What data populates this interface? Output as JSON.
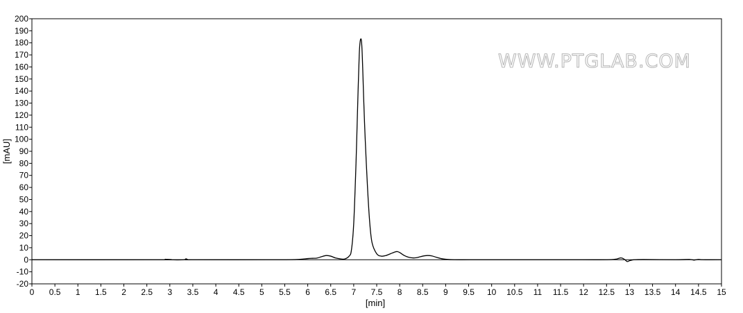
{
  "chart_data": {
    "type": "line",
    "title": "",
    "xlabel": "[min]",
    "ylabel": "[mAU]",
    "xlim": [
      0,
      15
    ],
    "ylim": [
      -20,
      200
    ],
    "x_ticks": [
      "0",
      "0.5",
      "1",
      "1.5",
      "2",
      "2.5",
      "3",
      "3.5",
      "4",
      "4.5",
      "5",
      "5.5",
      "6",
      "6.5",
      "7",
      "7.5",
      "8",
      "8.5",
      "9",
      "9.5",
      "10",
      "10.5",
      "11",
      "11.5",
      "12",
      "12.5",
      "13",
      "13.5",
      "14",
      "14.5",
      "15"
    ],
    "y_ticks": [
      "-20",
      "-10",
      "0",
      "10",
      "20",
      "30",
      "40",
      "50",
      "60",
      "70",
      "80",
      "90",
      "100",
      "110",
      "120",
      "130",
      "140",
      "150",
      "160",
      "170",
      "180",
      "190",
      "200"
    ],
    "grid": false,
    "legend": "none",
    "line_color": "#000000",
    "watermark": "WWW.PTGLAB.COM",
    "series": [
      {
        "x": [
          0,
          2.8,
          2.9,
          3.0,
          3.3,
          3.35,
          3.4,
          3.5,
          5.3,
          5.8,
          6.0,
          6.1,
          6.2,
          6.3,
          6.4,
          6.5,
          6.6,
          6.7,
          6.8,
          6.9,
          6.95,
          7.0,
          7.05,
          7.08,
          7.12,
          7.15,
          7.18,
          7.22,
          7.25,
          7.3,
          7.35,
          7.4,
          7.5,
          7.6,
          7.7,
          7.8,
          7.9,
          7.95,
          8.0,
          8.1,
          8.2,
          8.3,
          8.4,
          8.5,
          8.6,
          8.7,
          8.8,
          8.9,
          9.0,
          9.2,
          9.5,
          10.0,
          11.0,
          12.0,
          12.5,
          12.7,
          12.8,
          12.85,
          12.9,
          12.95,
          13.0,
          13.1,
          13.3,
          14.0,
          14.3,
          14.4,
          14.5,
          14.6,
          15.0
        ],
        "y": [
          0,
          0,
          0.4,
          0,
          0,
          0.8,
          0,
          0,
          0,
          0.3,
          1,
          1.2,
          1.4,
          2.5,
          3.5,
          3,
          1.5,
          0.8,
          0.6,
          3,
          8,
          30,
          80,
          120,
          170,
          183,
          175,
          130,
          100,
          60,
          30,
          14,
          5,
          3,
          3.5,
          5,
          6.5,
          6.8,
          6,
          3.5,
          2,
          1.5,
          2,
          3,
          3.5,
          3.2,
          2,
          1,
          0.4,
          0,
          0,
          0,
          0,
          0,
          0,
          0.5,
          1.5,
          1.2,
          0,
          -1.5,
          -0.8,
          0,
          0.2,
          0,
          0.3,
          -0.3,
          0.3,
          0,
          0
        ]
      }
    ]
  }
}
